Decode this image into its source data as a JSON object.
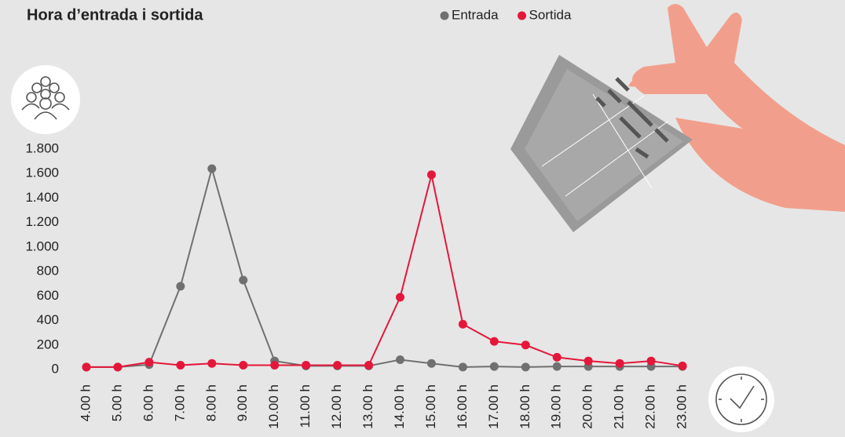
{
  "chart_data": {
    "type": "line",
    "title": "Hora d’entrada i sortida",
    "categories": [
      "4.00 h",
      "5.00 h",
      "6.00 h",
      "7.00 h",
      "8.00 h",
      "9.00 h",
      "10.00 h",
      "11.00 h",
      "12.00 h",
      "13.00 h",
      "14.00 h",
      "15.00 h",
      "16.00 h",
      "17.00 h",
      "18.00 h",
      "19.00 h",
      "20.00 h",
      "21.00 h",
      "22.00 h",
      "23.00 h"
    ],
    "series": [
      {
        "name": "Entrada",
        "color": "#707070",
        "values": [
          20,
          20,
          40,
          680,
          1640,
          730,
          70,
          30,
          30,
          30,
          80,
          50,
          20,
          25,
          20,
          25,
          25,
          25,
          25,
          25
        ]
      },
      {
        "name": "Sortida",
        "color": "#e4173a",
        "values": [
          20,
          20,
          60,
          35,
          50,
          35,
          35,
          35,
          35,
          35,
          590,
          1590,
          370,
          230,
          200,
          100,
          70,
          50,
          70,
          30
        ]
      }
    ],
    "ylim": [
      0,
      1800
    ],
    "yticks": [
      0,
      200,
      400,
      600,
      800,
      {
        "value": 1000,
        "label": "1.000"
      },
      {
        "value": 1200,
        "label": "1.200"
      },
      {
        "value": 1400,
        "label": "1.400"
      },
      {
        "value": 1600,
        "label": "1.600"
      },
      {
        "value": 1800,
        "label": "1.800"
      }
    ],
    "legend": "top"
  }
}
